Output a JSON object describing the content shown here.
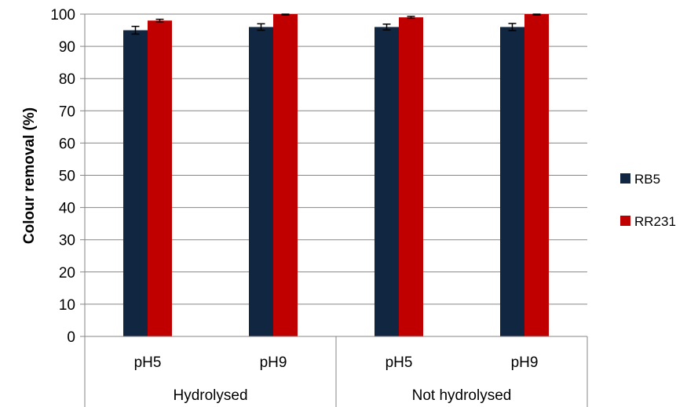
{
  "chart_data": {
    "type": "bar",
    "ylabel": "Colour removal (%)",
    "xlabel": "",
    "ylim": [
      0,
      100
    ],
    "yticks": [
      "0",
      "10",
      "20",
      "30",
      "40",
      "50",
      "60",
      "70",
      "80",
      "90",
      "100"
    ],
    "grid": true,
    "legend_position": "right",
    "categories": [
      "pH5",
      "pH9",
      "pH5",
      "pH9"
    ],
    "groups": [
      {
        "label": "Hydrolysed",
        "span": 2
      },
      {
        "label": "Not hydrolysed",
        "span": 2
      }
    ],
    "series": [
      {
        "name": "RB5",
        "color": "#112641",
        "values": [
          95,
          96,
          96,
          96
        ],
        "errors": [
          1.2,
          1.0,
          0.9,
          1.1
        ]
      },
      {
        "name": "RR231",
        "color": "#c00000",
        "values": [
          98,
          100,
          99,
          100
        ],
        "errors": [
          0.4,
          0.3,
          0.3,
          0.3
        ]
      }
    ]
  }
}
